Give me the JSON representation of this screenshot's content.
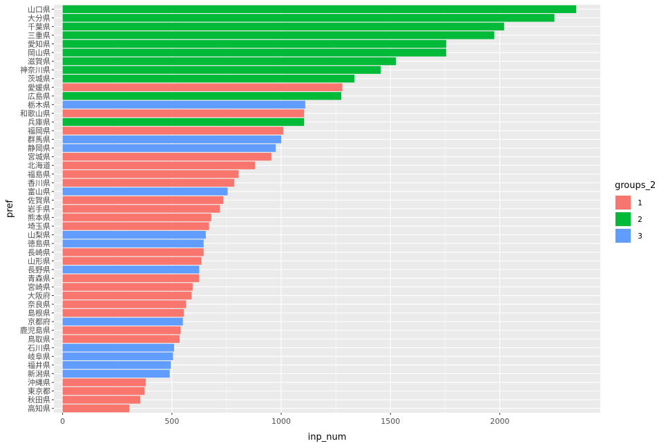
{
  "chart_data": {
    "type": "bar",
    "orientation": "horizontal",
    "xlabel": "inp_num",
    "ylabel": "pref",
    "xlim": [
      -40,
      2460
    ],
    "xticks": [
      0,
      500,
      1000,
      1500,
      2000
    ],
    "grid": true,
    "legend": {
      "title": "groups_2",
      "placement": "right",
      "entries": [
        {
          "label": "1",
          "color": "#F8766D"
        },
        {
          "label": "2",
          "color": "#00BA38"
        },
        {
          "label": "3",
          "color": "#619CFF"
        }
      ]
    },
    "categories": [
      "山口県",
      "大分県",
      "千葉県",
      "三重県",
      "愛知県",
      "岡山県",
      "滋賀県",
      "神奈川県",
      "茨城県",
      "愛媛県",
      "広島県",
      "栃木県",
      "和歌山県",
      "兵庫県",
      "福岡県",
      "群馬県",
      "静岡県",
      "宮城県",
      "北海道",
      "福島県",
      "香川県",
      "富山県",
      "佐賀県",
      "岩手県",
      "熊本県",
      "埼玉県",
      "山梨県",
      "徳島県",
      "長崎県",
      "山形県",
      "長野県",
      "青森県",
      "宮崎県",
      "大阪府",
      "奈良県",
      "島根県",
      "京都府",
      "鹿児島県",
      "鳥取県",
      "石川県",
      "岐阜県",
      "福井県",
      "新潟県",
      "沖縄県",
      "東京都",
      "秋田県",
      "高知県"
    ],
    "values": [
      2350,
      2250,
      2020,
      1975,
      1755,
      1755,
      1525,
      1455,
      1335,
      1280,
      1275,
      1110,
      1105,
      1105,
      1010,
      1000,
      975,
      955,
      880,
      805,
      785,
      755,
      735,
      720,
      680,
      670,
      655,
      645,
      645,
      635,
      625,
      625,
      595,
      590,
      565,
      555,
      550,
      540,
      535,
      510,
      505,
      495,
      490,
      380,
      375,
      355,
      305
    ],
    "groups": [
      "2",
      "2",
      "2",
      "2",
      "2",
      "2",
      "2",
      "2",
      "2",
      "1",
      "2",
      "3",
      "1",
      "2",
      "1",
      "3",
      "3",
      "1",
      "1",
      "1",
      "1",
      "3",
      "1",
      "1",
      "1",
      "1",
      "3",
      "3",
      "1",
      "1",
      "3",
      "1",
      "1",
      "1",
      "1",
      "1",
      "3",
      "1",
      "1",
      "3",
      "3",
      "3",
      "3",
      "1",
      "1",
      "1",
      "1"
    ]
  }
}
